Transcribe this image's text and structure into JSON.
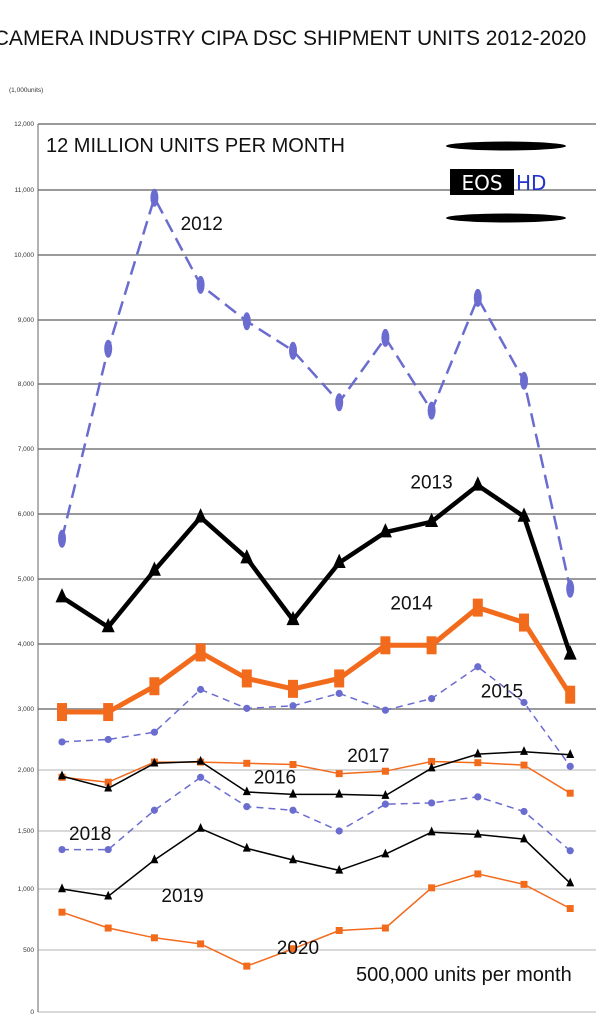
{
  "title": "CAMERA INDUSTRY CIPA DSC SHIPMENT UNITS 2012-2020",
  "unit_label": "(1,000units)",
  "notes": {
    "top": "12 MILLION UNITS PER MONTH",
    "bottom": "500,000 units per month"
  },
  "logo": {
    "part1": "EOS",
    "part2": "HD"
  },
  "colors": {
    "blue": "#6b6ccf",
    "black": "#000000",
    "orange": "#f26b1d"
  },
  "chart_data": {
    "type": "line",
    "title": "CAMERA INDUSTRY CIPA DSC SHIPMENT UNITS 2012-2020",
    "ylabel": "(1,000units)",
    "ylim": [
      0,
      12000
    ],
    "y_ticks": [
      {
        "value": 0,
        "label": "0"
      },
      {
        "value": 500,
        "label": "500"
      },
      {
        "value": 1000,
        "label": "1,000"
      },
      {
        "value": 1500,
        "label": "1,500"
      },
      {
        "value": 2000,
        "label": "2,000"
      },
      {
        "value": 3000,
        "label": "3,000"
      },
      {
        "value": 4000,
        "label": "4,000"
      },
      {
        "value": 5000,
        "label": "5,000"
      },
      {
        "value": 6000,
        "label": "6,000"
      },
      {
        "value": 7000,
        "label": "7,000"
      },
      {
        "value": 8000,
        "label": "8,000"
      },
      {
        "value": 9000,
        "label": "9,000"
      },
      {
        "value": 10000,
        "label": "10,000"
      },
      {
        "value": 11000,
        "label": "11,000"
      },
      {
        "value": 12000,
        "label": "12,000"
      }
    ],
    "x": [
      1,
      2,
      3,
      4,
      5,
      6,
      7,
      8,
      9,
      10,
      11,
      12
    ],
    "series": [
      {
        "name": "2012",
        "color": "#6b6ccf",
        "style": "dashed",
        "marker": "ellipse",
        "width": 2.5,
        "values": [
          5620,
          8550,
          10880,
          9540,
          8980,
          8520,
          7720,
          8720,
          7590,
          9340,
          8050,
          4850
        ]
      },
      {
        "name": "2013",
        "color": "#000000",
        "style": "solid",
        "marker": "triangle",
        "width": 4.5,
        "values": [
          4720,
          4260,
          5130,
          5950,
          5320,
          4370,
          5250,
          5720,
          5880,
          6440,
          5960,
          3840
        ]
      },
      {
        "name": "2014",
        "color": "#f26b1d",
        "style": "solid",
        "marker": "square",
        "width": 5,
        "values": [
          2950,
          2950,
          3350,
          3870,
          3470,
          3310,
          3470,
          3980,
          3980,
          4560,
          4330,
          3220
        ]
      },
      {
        "name": "2015",
        "color": "#6b6ccf",
        "style": "dashed",
        "marker": "dot",
        "width": 1.5,
        "values": [
          2460,
          2500,
          2620,
          3300,
          3010,
          3050,
          3240,
          2980,
          3160,
          3650,
          3100,
          2060
        ]
      },
      {
        "name": "2017",
        "color": "#f26b1d",
        "style": "solid",
        "marker": "square",
        "width": 1.5,
        "values": [
          1940,
          1900,
          2130,
          2130,
          2110,
          2090,
          1970,
          1990,
          2140,
          2120,
          2080,
          1810
        ]
      },
      {
        "name": "2016",
        "color": "#000000",
        "style": "solid",
        "marker": "triangle",
        "width": 1.5,
        "values": [
          1950,
          1850,
          2110,
          2140,
          1820,
          1800,
          1800,
          1790,
          2030,
          2260,
          2300,
          2250
        ]
      },
      {
        "name": "2018",
        "color": "#6b6ccf",
        "style": "dashed",
        "marker": "dot",
        "width": 1.5,
        "values": [
          1340,
          1340,
          1670,
          1940,
          1700,
          1670,
          1500,
          1720,
          1730,
          1780,
          1660,
          1330
        ]
      },
      {
        "name": "2019",
        "color": "#000000",
        "style": "solid",
        "marker": "triangle",
        "width": 1.5,
        "values": [
          1000,
          940,
          1250,
          1520,
          1350,
          1250,
          1160,
          1300,
          1490,
          1470,
          1430,
          1050
        ]
      },
      {
        "name": "2020",
        "color": "#f26b1d",
        "style": "solid",
        "marker": "square",
        "width": 1.5,
        "values": [
          810,
          680,
          600,
          550,
          370,
          510,
          660,
          680,
          1010,
          1130,
          1040,
          840
        ]
      }
    ]
  }
}
